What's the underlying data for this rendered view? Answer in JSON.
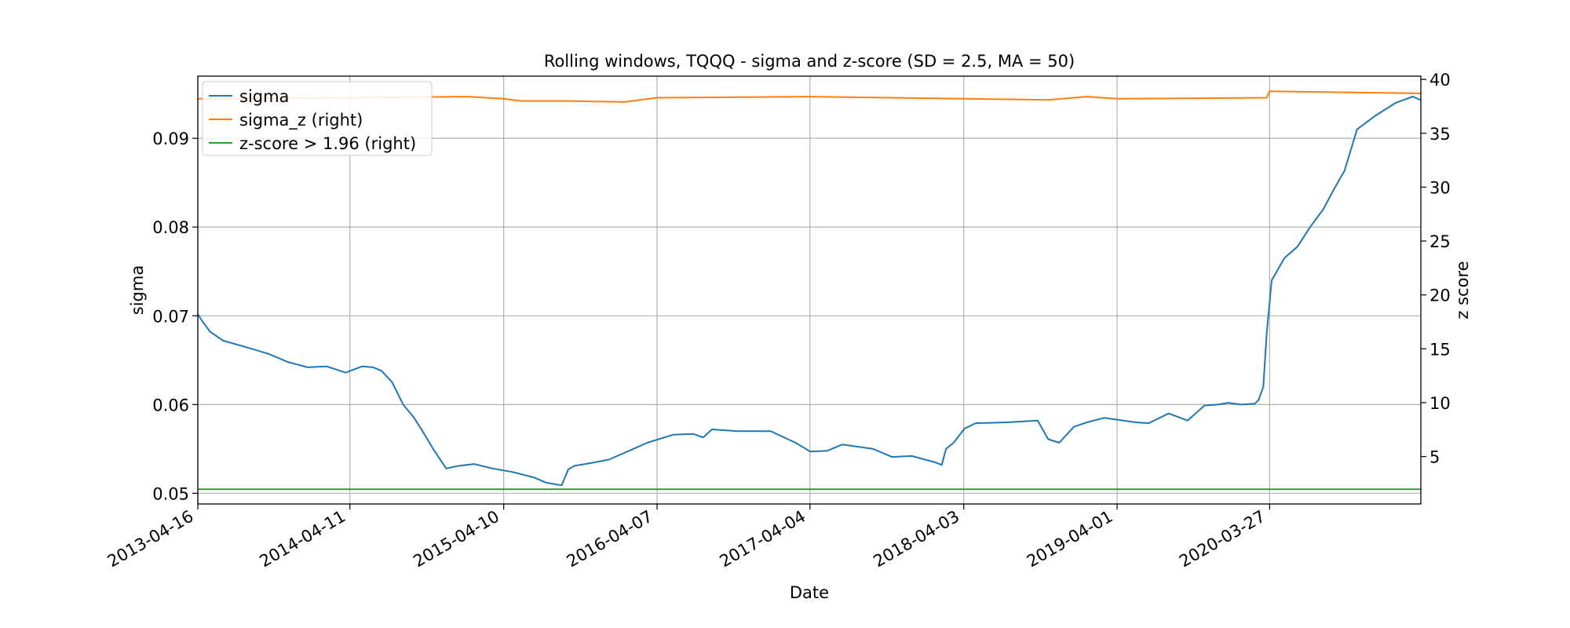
{
  "chart_data": {
    "type": "line",
    "title": "Rolling windows, TQQQ - sigma and z-score (SD = 2.5, MA = 50)",
    "xlabel": "Date",
    "ylabel": "sigma",
    "ylabel_right": "z score",
    "x_ticks": [
      "2013-04-16",
      "2014-04-11",
      "2015-04-10",
      "2016-04-07",
      "2017-04-04",
      "2018-04-03",
      "2019-04-01",
      "2020-03-27"
    ],
    "x_range": [
      "2013-04-16",
      "2021-03-20"
    ],
    "ylim": [
      0.0488,
      0.097
    ],
    "ylim_right": [
      0.6,
      40.3
    ],
    "y_ticks": [
      0.05,
      0.06,
      0.07,
      0.08,
      0.09
    ],
    "y_ticks_right": [
      5,
      10,
      15,
      20,
      25,
      30,
      35,
      40
    ],
    "grid": true,
    "legend_position": "top-left",
    "colors": {
      "sigma": "#1f77b4",
      "sigma_z": "#ff7f0e",
      "zscore": "#2ca02c"
    },
    "series": [
      {
        "name": "sigma",
        "axis": "left",
        "x": [
          "2013-04-16",
          "2013-04-25",
          "2013-05-15",
          "2013-06-15",
          "2013-07-15",
          "2013-08-20",
          "2013-10-01",
          "2013-11-15",
          "2014-01-01",
          "2014-02-15",
          "2014-04-01",
          "2014-05-10",
          "2014-06-05",
          "2014-06-25",
          "2014-07-20",
          "2014-08-15",
          "2014-09-10",
          "2014-09-30",
          "2014-10-25",
          "2014-11-25",
          "2014-12-25",
          "2015-01-30",
          "2015-03-15",
          "2015-05-01",
          "2015-06-20",
          "2015-07-20",
          "2015-08-25",
          "2015-09-10",
          "2015-09-25",
          "2015-11-01",
          "2015-12-15",
          "2016-02-01",
          "2016-03-15",
          "2016-05-15",
          "2016-07-01",
          "2016-07-25",
          "2016-08-15",
          "2016-10-15",
          "2017-01-01",
          "2017-03-01",
          "2017-04-05",
          "2017-05-15",
          "2017-06-20",
          "2017-09-01",
          "2017-10-15",
          "2017-12-01",
          "2018-01-25",
          "2018-02-10",
          "2018-02-20",
          "2018-03-10",
          "2018-04-05",
          "2018-05-01",
          "2018-07-15",
          "2018-09-25",
          "2018-10-20",
          "2018-11-15",
          "2018-12-20",
          "2019-01-20",
          "2019-03-01",
          "2019-05-15",
          "2019-06-15",
          "2019-08-01",
          "2019-09-15",
          "2019-10-25",
          "2019-11-25",
          "2019-12-20",
          "2020-01-20",
          "2020-02-21",
          "2020-03-01",
          "2020-03-12",
          "2020-03-20",
          "2020-04-01",
          "2020-05-01",
          "2020-06-01",
          "2020-07-01",
          "2020-08-01",
          "2020-08-20",
          "2020-09-10",
          "2020-09-20",
          "2020-10-20",
          "2020-12-01",
          "2021-01-20",
          "2021-03-01",
          "2021-03-20"
        ],
        "values": [
          0.0702,
          0.0695,
          0.0682,
          0.0672,
          0.0668,
          0.0663,
          0.0657,
          0.0648,
          0.0642,
          0.0643,
          0.0636,
          0.0643,
          0.0642,
          0.0638,
          0.0625,
          0.06,
          0.0585,
          0.057,
          0.055,
          0.0528,
          0.0531,
          0.0533,
          0.0528,
          0.0524,
          0.0518,
          0.0512,
          0.0509,
          0.0527,
          0.0531,
          0.0534,
          0.0538,
          0.0548,
          0.0557,
          0.0566,
          0.0567,
          0.0563,
          0.0572,
          0.057,
          0.057,
          0.0557,
          0.0547,
          0.0548,
          0.0555,
          0.055,
          0.0541,
          0.0542,
          0.0535,
          0.0532,
          0.055,
          0.0557,
          0.0573,
          0.0579,
          0.058,
          0.0582,
          0.0561,
          0.0557,
          0.0575,
          0.058,
          0.0585,
          0.058,
          0.0579,
          0.059,
          0.0582,
          0.0599,
          0.06,
          0.0602,
          0.06,
          0.0601,
          0.0605,
          0.062,
          0.068,
          0.074,
          0.0765,
          0.0778,
          0.08,
          0.082,
          0.0837,
          0.0855,
          0.0863,
          0.091,
          0.0925,
          0.094,
          0.0947,
          0.0943
        ]
      },
      {
        "name": "sigma_z (right)",
        "axis": "right",
        "x": [
          "2013-04-16",
          "2014-04-11",
          "2015-01-15",
          "2015-04-10",
          "2015-05-20",
          "2015-09-10",
          "2016-01-20",
          "2016-04-07",
          "2017-04-04",
          "2018-04-03",
          "2018-10-20",
          "2019-01-20",
          "2019-04-01",
          "2020-03-20",
          "2020-03-27",
          "2021-03-20"
        ],
        "values": [
          38.2,
          38.3,
          38.4,
          38.2,
          38.0,
          38.0,
          37.9,
          38.3,
          38.4,
          38.2,
          38.1,
          38.4,
          38.2,
          38.3,
          38.9,
          38.7
        ]
      },
      {
        "name": "z-score > 1.96 (right)",
        "axis": "right",
        "x": [
          "2013-04-16",
          "2021-03-20"
        ],
        "values": [
          1.96,
          1.96
        ]
      }
    ]
  }
}
